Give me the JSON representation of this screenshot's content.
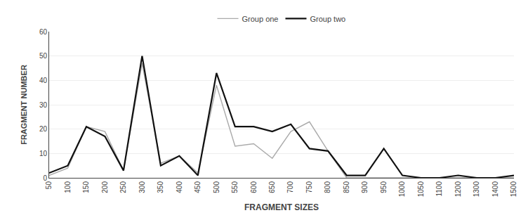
{
  "chart_data": {
    "type": "line",
    "xlabel": "FRAGMENT SIZES",
    "ylabel": "FRAGMENT NUMBER",
    "categories": [
      "50",
      "100",
      "150",
      "200",
      "250",
      "300",
      "350",
      "400",
      "450",
      "500",
      "550",
      "600",
      "650",
      "700",
      "750",
      "800",
      "850",
      "900",
      "950",
      "1000",
      "1050",
      "1100",
      "1200",
      "1300",
      "1400",
      "1500"
    ],
    "series": [
      {
        "name": "Group one",
        "color": "#aaaaaa",
        "values": [
          1,
          4,
          21,
          19,
          3,
          47,
          6,
          9,
          2,
          38,
          13,
          14,
          8,
          19,
          23,
          11,
          0,
          0,
          0,
          0,
          0,
          0,
          0,
          0,
          0,
          0
        ]
      },
      {
        "name": "Group two",
        "color": "#111111",
        "values": [
          2,
          5,
          21,
          17,
          3,
          50,
          5,
          9,
          1,
          43,
          21,
          21,
          19,
          22,
          12,
          11,
          1,
          1,
          12,
          1,
          0,
          0,
          1,
          0,
          0,
          1
        ]
      }
    ],
    "ylim": [
      0,
      60
    ],
    "yticks": [
      0,
      10,
      20,
      30,
      40,
      50,
      60
    ],
    "grid": true,
    "legend": "top"
  }
}
